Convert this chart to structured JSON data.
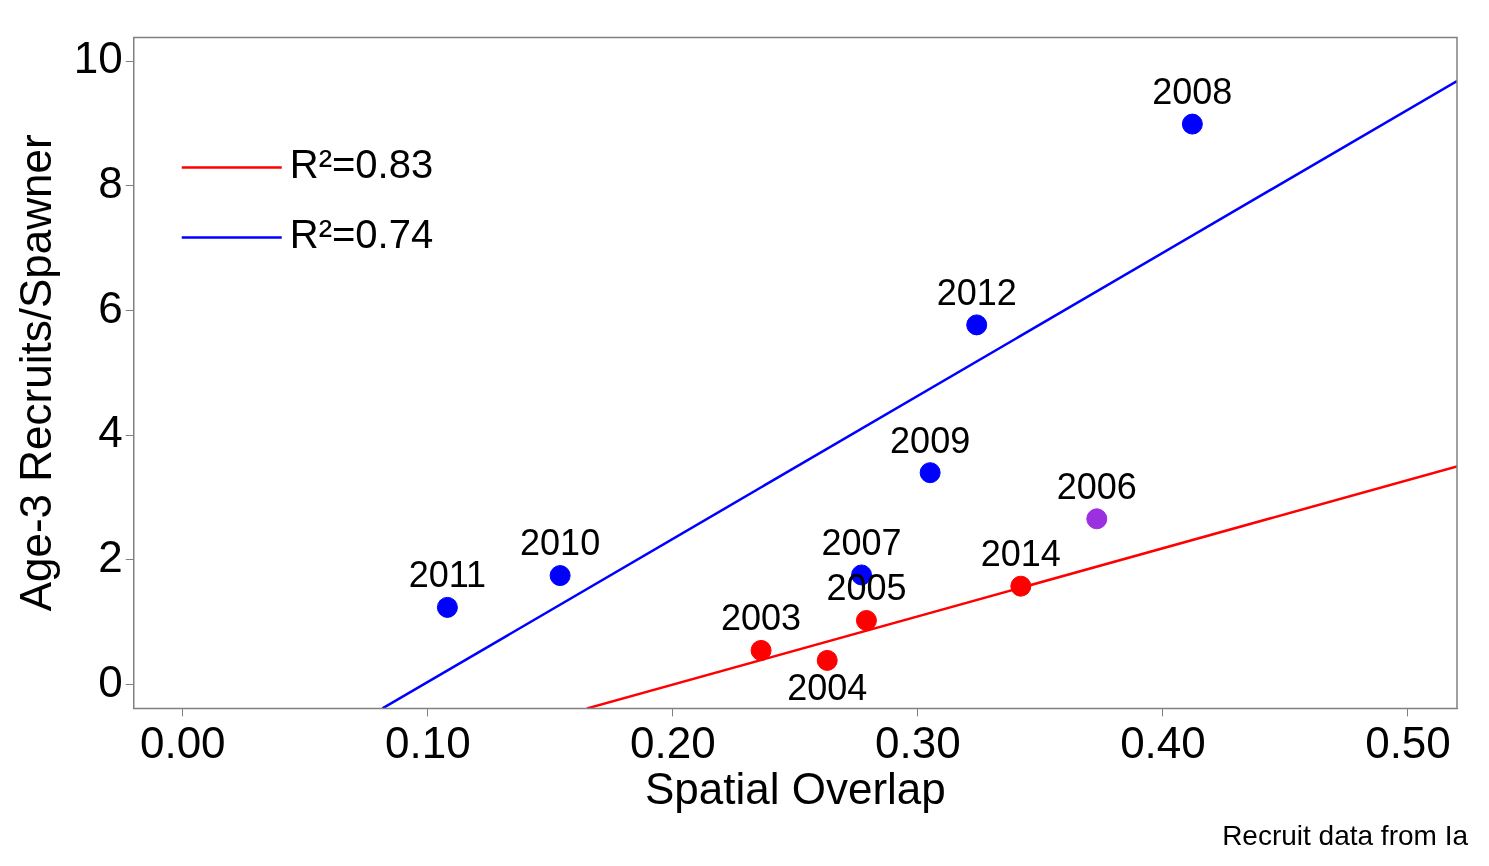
{
  "chart_data": {
    "type": "scatter",
    "xlabel": "Spatial Overlap",
    "ylabel": "Age-3 Recruits/Spawner",
    "xlim": [
      -0.02,
      0.52
    ],
    "ylim": [
      -0.38,
      10.38
    ],
    "xticks": [
      {
        "value": 0,
        "label": "0.00"
      },
      {
        "value": 0.1,
        "label": "0.10"
      },
      {
        "value": 0.2,
        "label": "0.20"
      },
      {
        "value": 0.3,
        "label": "0.30"
      },
      {
        "value": 0.4,
        "label": "0.40"
      },
      {
        "value": 0.5,
        "label": "0.50"
      }
    ],
    "yticks": [
      0,
      2,
      4,
      6,
      8,
      10
    ],
    "grid": false,
    "legend": "top left",
    "series": [
      {
        "type": "line",
        "name": "R²=0.83",
        "color": "#ff0000",
        "x": [
          0.165,
          0.52
        ],
        "values": [
          -0.38,
          3.5
        ],
        "marker": "none",
        "line_style": "solid"
      },
      {
        "type": "line",
        "name": "R²=0.74",
        "color": "#0000ff",
        "x": [
          0.0815,
          0.52
        ],
        "values": [
          -0.38,
          9.68
        ],
        "marker": "none",
        "line_style": "solid"
      },
      {
        "type": "scatter",
        "marker": "circle",
        "x": [
          0.108,
          0.154,
          0.236,
          0.263,
          0.277,
          0.279,
          0.305,
          0.324,
          0.342,
          0.373,
          0.412
        ],
        "values": [
          1.24,
          1.75,
          0.55,
          0.39,
          1.76,
          1.03,
          3.4,
          5.77,
          1.58,
          2.66,
          8.99
        ],
        "colors": [
          "#0000ff",
          "#0000ff",
          "#ff0000",
          "#ff0000",
          "#0000ff",
          "#ff0000",
          "#0000ff",
          "#0000ff",
          "#ff0000",
          "#9b30e0",
          "#0000ff"
        ]
      }
    ],
    "annotations": [
      {
        "text": "2011",
        "x": 0.108,
        "y": 1.24
      },
      {
        "text": "2010",
        "x": 0.154,
        "y": 1.75
      },
      {
        "text": "2003",
        "x": 0.236,
        "y": 0.55
      },
      {
        "text": "2004",
        "x": 0.263,
        "y": 0.39
      },
      {
        "text": "2007",
        "x": 0.277,
        "y": 1.76
      },
      {
        "text": "2005",
        "x": 0.279,
        "y": 1.03
      },
      {
        "text": "2009",
        "x": 0.305,
        "y": 3.4
      },
      {
        "text": "2012",
        "x": 0.324,
        "y": 5.77
      },
      {
        "text": "2014",
        "x": 0.342,
        "y": 1.58
      },
      {
        "text": "2006",
        "x": 0.373,
        "y": 2.66
      },
      {
        "text": "2008",
        "x": 0.412,
        "y": 8.99
      },
      "Recruit data from Ia"
    ]
  }
}
